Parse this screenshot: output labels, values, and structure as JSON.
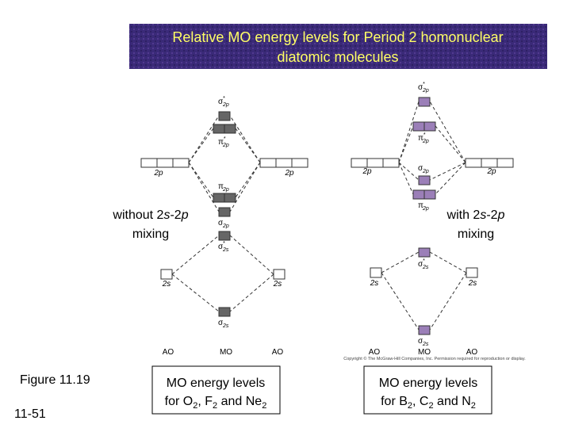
{
  "title": [
    "Relative MO energy levels for Period 2 homonuclear",
    "diatomic molecules"
  ],
  "figure": "Figure 11.19",
  "slide_number": "11-51",
  "copyright": "Copyright © The McGraw-Hill Companies, Inc. Permission required for reproduction or display.",
  "diagrams": [
    {
      "side_label": {
        "line1": [
          "without 2",
          "s",
          "-2",
          "p"
        ],
        "line2": "mixing"
      },
      "ao_labels": [
        "2p",
        "2p",
        "2s",
        "2s"
      ],
      "mo_labels": [
        {
          "symbol": "σ",
          "star": "*",
          "sub": "2p"
        },
        {
          "symbol": "π",
          "star": "*",
          "sub": "2p"
        },
        {
          "symbol": "π",
          "sub": "2p"
        },
        {
          "symbol": "σ",
          "sub": "2p"
        },
        {
          "symbol": "σ",
          "star": "*",
          "sub": "2s"
        },
        {
          "symbol": "σ",
          "sub": "2s"
        }
      ],
      "axis_labels": [
        "AO",
        "MO",
        "AO"
      ],
      "caption": {
        "line1": "MO energy levels",
        "line2": [
          "for O",
          "2",
          ", F",
          "2",
          " and Ne",
          "2"
        ]
      }
    },
    {
      "side_label": {
        "line1": [
          "with 2",
          "s",
          "-2",
          "p"
        ],
        "line2": "mixing"
      },
      "ao_labels": [
        "2p",
        "2p",
        "2s",
        "2s"
      ],
      "mo_labels": [
        {
          "symbol": "σ",
          "star": "*",
          "sub": "2p"
        },
        {
          "symbol": "π",
          "star": "*",
          "sub": "2p"
        },
        {
          "symbol": "σ",
          "sub": "2p"
        },
        {
          "symbol": "π",
          "sub": "2p"
        },
        {
          "symbol": "σ",
          "star": "*",
          "sub": "2s"
        },
        {
          "symbol": "σ",
          "sub": "2s"
        }
      ],
      "axis_labels": [
        "AO",
        "MO",
        "AO"
      ],
      "caption": {
        "line1": "MO energy levels",
        "line2": [
          "for B",
          "2",
          ", C",
          "2",
          " and N",
          "2"
        ]
      }
    }
  ]
}
